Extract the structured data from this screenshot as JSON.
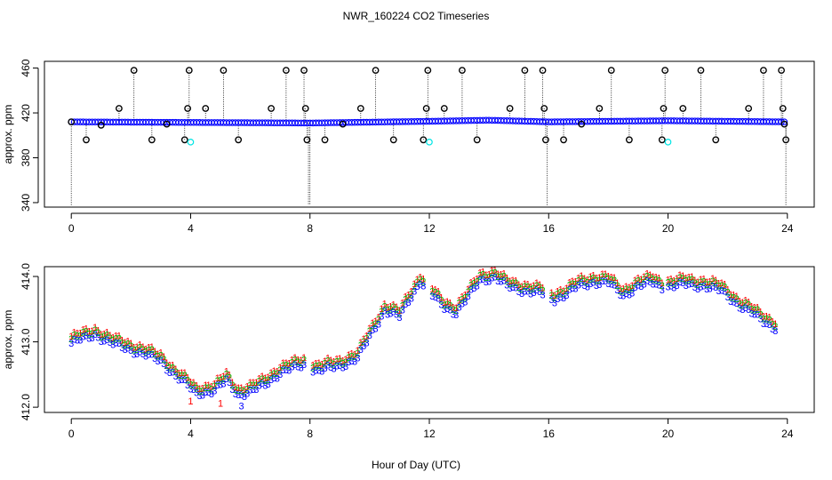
{
  "figure": {
    "title": "NWR_160224  CO2 Timeseries",
    "xlabel": "Hour of Day (UTC)"
  },
  "chart_data": [
    {
      "type": "scatter",
      "ylabel": "approx. ppm",
      "xlim": [
        -0.9,
        24.9
      ],
      "ylim": [
        336,
        466
      ],
      "xticks": [
        "0",
        "4",
        "8",
        "12",
        "16",
        "20",
        "24"
      ],
      "yticks": [
        "340",
        "380",
        "420",
        "460"
      ],
      "grid": false,
      "series": [
        {
          "color": "#0000ff",
          "marker": "circle",
          "baseline": {
            "start": 0.0,
            "end": 23.9,
            "step": 0.1,
            "values": [
              [
                0,
                412.0
              ],
              [
                4,
                411.5
              ],
              [
                8,
                411.0
              ],
              [
                12,
                412.5
              ],
              [
                14,
                413.5
              ],
              [
                16,
                412.0
              ],
              [
                20,
                413.0
              ],
              [
                24,
                412.0
              ]
            ]
          }
        },
        {
          "color": "#000000",
          "marker": "circle-with-drop-line",
          "points": [
            [
              0.0,
              412
            ],
            [
              0.5,
              396
            ],
            [
              1.0,
              409
            ],
            [
              1.6,
              424
            ],
            [
              2.1,
              458
            ],
            [
              2.7,
              396
            ],
            [
              3.2,
              410
            ],
            [
              3.8,
              396
            ],
            [
              3.9,
              424
            ],
            [
              3.95,
              458
            ],
            [
              4.5,
              424
            ],
            [
              5.1,
              458
            ],
            [
              5.6,
              396
            ],
            [
              6.7,
              424
            ],
            [
              7.2,
              458
            ],
            [
              7.8,
              458
            ],
            [
              7.85,
              424
            ],
            [
              7.9,
              396
            ],
            [
              8.5,
              396
            ],
            [
              9.1,
              410
            ],
            [
              9.7,
              424
            ],
            [
              10.2,
              458
            ],
            [
              10.8,
              396
            ],
            [
              11.8,
              396
            ],
            [
              11.9,
              424
            ],
            [
              11.95,
              458
            ],
            [
              12.5,
              424
            ],
            [
              13.1,
              458
            ],
            [
              13.6,
              396
            ],
            [
              14.7,
              424
            ],
            [
              15.2,
              458
            ],
            [
              15.8,
              458
            ],
            [
              15.85,
              424
            ],
            [
              15.9,
              396
            ],
            [
              16.5,
              396
            ],
            [
              17.1,
              410
            ],
            [
              17.7,
              424
            ],
            [
              18.1,
              458
            ],
            [
              18.7,
              396
            ],
            [
              19.8,
              396
            ],
            [
              19.85,
              424
            ],
            [
              19.9,
              458
            ],
            [
              20.5,
              424
            ],
            [
              21.1,
              458
            ],
            [
              21.6,
              396
            ],
            [
              22.7,
              424
            ],
            [
              23.2,
              458
            ],
            [
              23.8,
              458
            ],
            [
              23.85,
              424
            ],
            [
              23.9,
              410
            ],
            [
              23.95,
              396
            ]
          ]
        },
        {
          "color": "#00e5e5",
          "marker": "circle",
          "points": [
            [
              4.0,
              394
            ],
            [
              12.0,
              394
            ],
            [
              20.0,
              394
            ]
          ]
        }
      ],
      "drop_lines_to_axis_bottom": [
        0.0,
        7.95,
        8.0,
        15.95,
        23.95
      ]
    },
    {
      "type": "scatter",
      "ylabel": "approx. ppm",
      "xlim": [
        -0.9,
        24.9
      ],
      "ylim": [
        411.92,
        414.15
      ],
      "xticks": [
        "0",
        "4",
        "8",
        "12",
        "16",
        "20",
        "24"
      ],
      "yticks": [
        "412.0",
        "413.0",
        "414.0"
      ],
      "grid": false,
      "x_start": 0.0,
      "x_step": 0.1,
      "curve_anchor_points": [
        [
          0.0,
          413.05
        ],
        [
          0.8,
          413.18
        ],
        [
          1.3,
          413.05
        ],
        [
          2.0,
          412.95
        ],
        [
          3.0,
          412.78
        ],
        [
          3.5,
          412.55
        ],
        [
          3.9,
          412.4
        ],
        [
          4.2,
          412.28
        ],
        [
          4.8,
          412.32
        ],
        [
          5.2,
          412.48
        ],
        [
          5.6,
          412.26
        ],
        [
          6.0,
          412.3
        ],
        [
          6.5,
          412.42
        ],
        [
          7.0,
          412.6
        ],
        [
          7.8,
          412.72
        ],
        [
          8.2,
          412.62
        ],
        [
          9.0,
          412.7
        ],
        [
          9.6,
          412.82
        ],
        [
          10.0,
          413.15
        ],
        [
          10.5,
          413.55
        ],
        [
          11.0,
          413.45
        ],
        [
          11.4,
          413.78
        ],
        [
          11.7,
          414.0
        ],
        [
          12.1,
          413.78
        ],
        [
          12.5,
          413.6
        ],
        [
          12.9,
          413.52
        ],
        [
          13.3,
          413.75
        ],
        [
          13.7,
          414.02
        ],
        [
          14.2,
          414.05
        ],
        [
          14.6,
          413.92
        ],
        [
          15.2,
          413.85
        ],
        [
          15.8,
          413.8
        ],
        [
          16.2,
          413.72
        ],
        [
          16.6,
          413.8
        ],
        [
          17.0,
          413.92
        ],
        [
          17.5,
          413.98
        ],
        [
          18.0,
          413.97
        ],
        [
          18.5,
          413.78
        ],
        [
          19.0,
          413.92
        ],
        [
          19.5,
          413.98
        ],
        [
          19.8,
          413.9
        ],
        [
          20.2,
          413.92
        ],
        [
          20.6,
          413.95
        ],
        [
          21.2,
          413.92
        ],
        [
          21.8,
          413.85
        ],
        [
          22.4,
          413.62
        ],
        [
          23.0,
          413.45
        ],
        [
          23.6,
          413.28
        ]
      ],
      "gaps": [
        [
          7.85,
          8.0
        ],
        [
          11.85,
          12.0
        ],
        [
          15.85,
          16.0
        ],
        [
          19.85,
          20.0
        ]
      ],
      "series": [
        {
          "label": "1",
          "color": "#ff0000",
          "offset": 0.04
        },
        {
          "label": "2",
          "color": "#00bb00",
          "offset": 0.0
        },
        {
          "label": "3",
          "color": "#0000ff",
          "offset": -0.07
        }
      ],
      "extra_glyphs": [
        [
          4.0,
          "1",
          "#ff0000",
          412.1
        ],
        [
          5.0,
          "1",
          "#ff0000",
          412.06
        ],
        [
          5.7,
          "3",
          "#0000ff",
          412.02
        ]
      ]
    }
  ]
}
